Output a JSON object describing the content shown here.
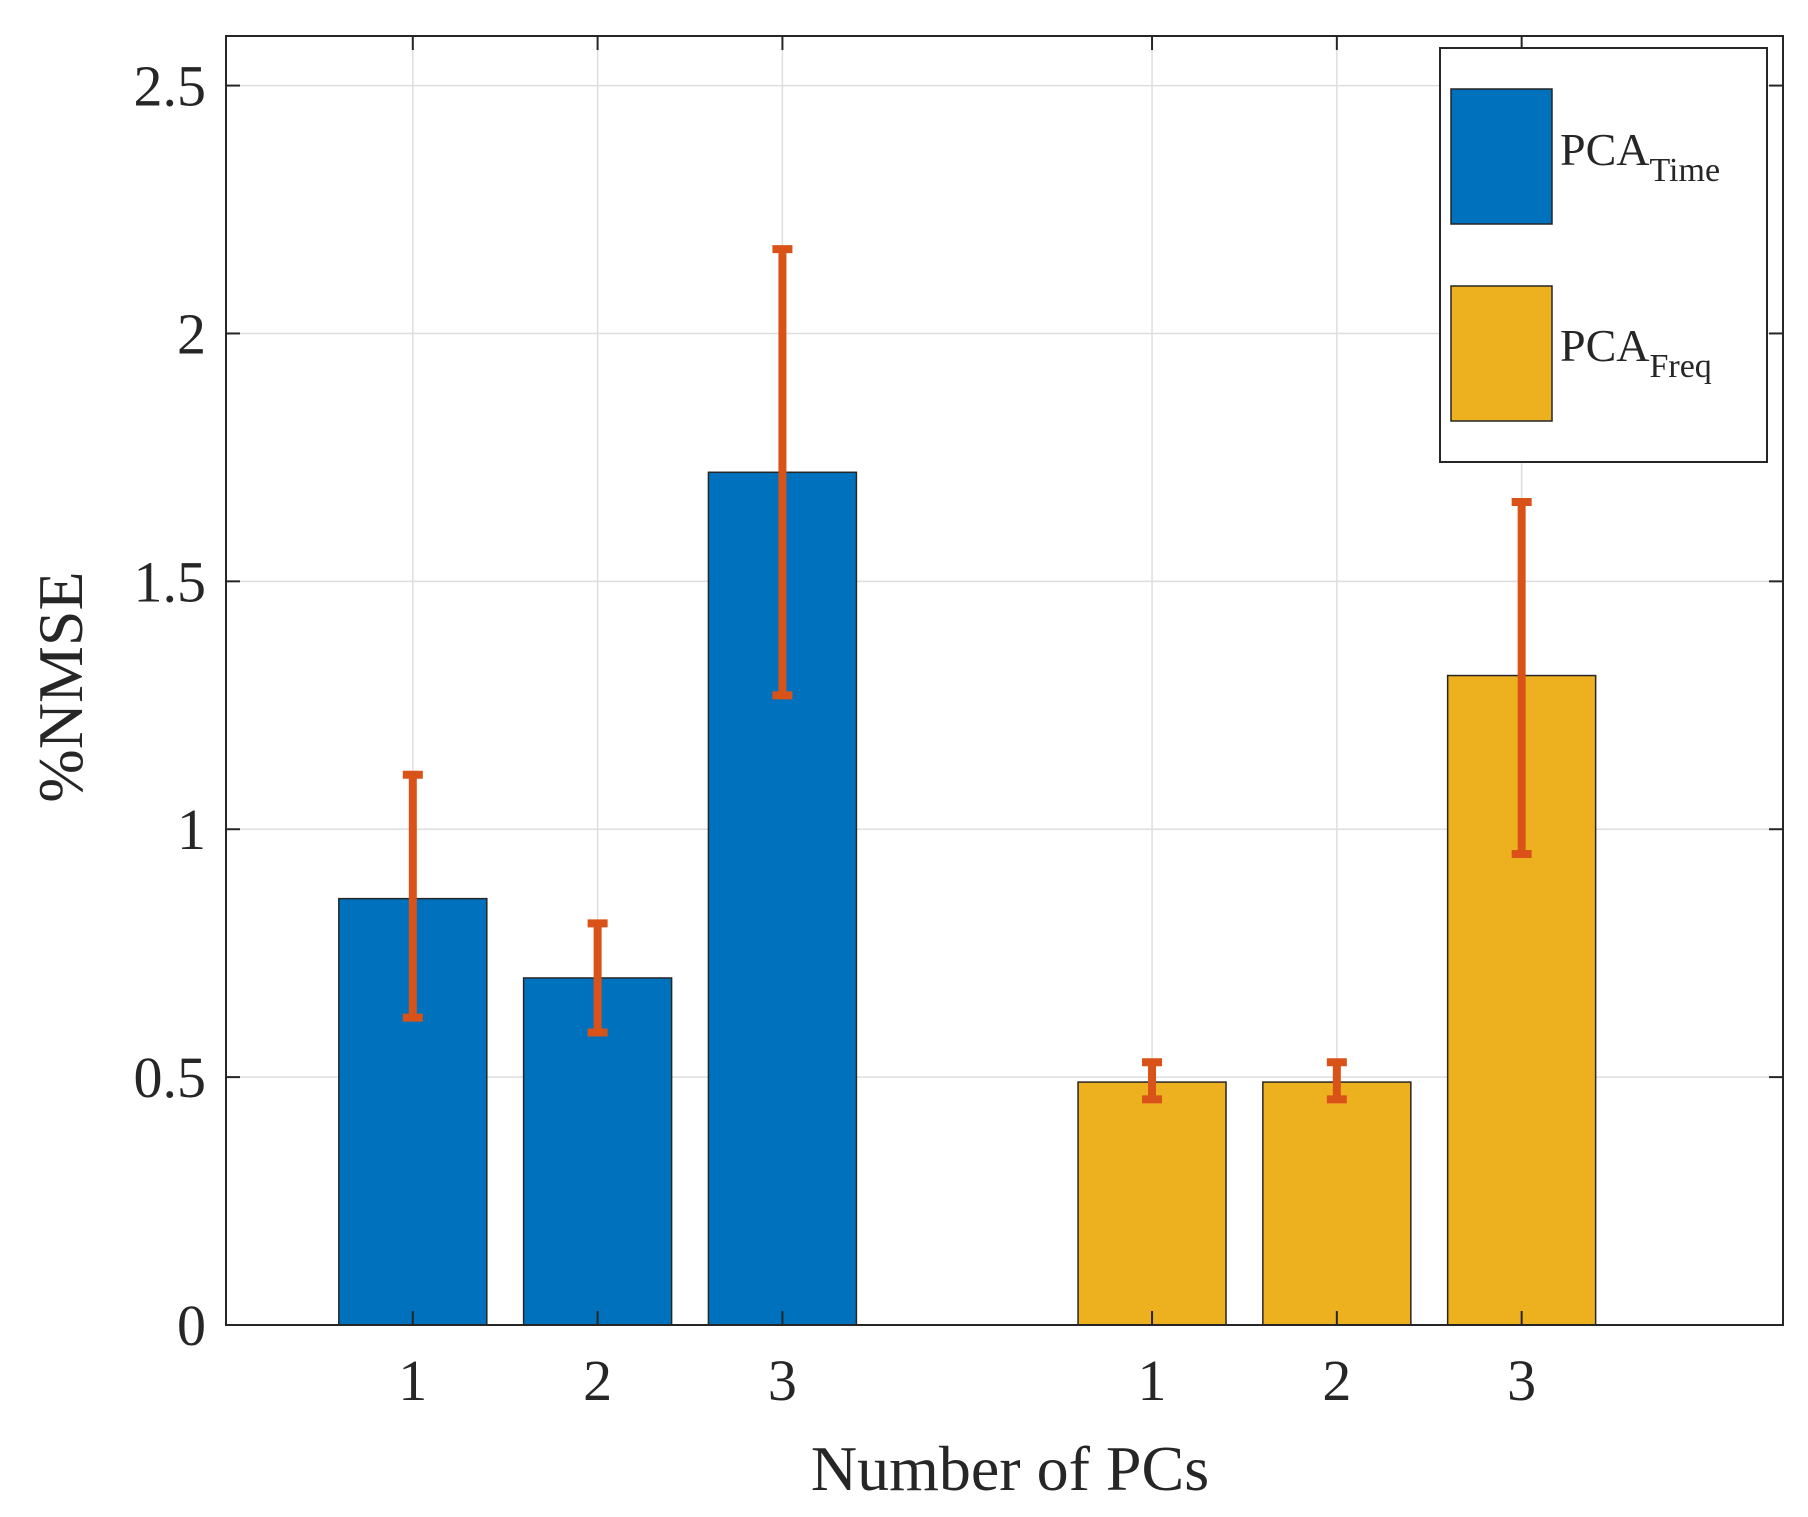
{
  "chart_data": {
    "type": "bar",
    "title": "",
    "xlabel": "Number of PCs",
    "ylabel": "%NMSE",
    "ylim": [
      0,
      2.6
    ],
    "yticks": [
      "0",
      "0.5",
      "1",
      "1.5",
      "2",
      "2.5"
    ],
    "ytick_values": [
      0,
      0.5,
      1,
      1.5,
      2,
      2.5
    ],
    "grid": true,
    "legend_location": "top-right",
    "error_bar_color": "#D95319",
    "groups": [
      {
        "name": "PCA_Time",
        "legend_main": "PCA",
        "legend_sub": "Time",
        "color": "#0072BD",
        "categories": [
          "1",
          "2",
          "3"
        ],
        "values": [
          0.86,
          0.7,
          1.72
        ],
        "error_low": [
          0.62,
          0.59,
          1.27
        ],
        "error_high": [
          1.11,
          0.81,
          2.17
        ]
      },
      {
        "name": "PCA_Freq",
        "legend_main": "PCA",
        "legend_sub": "Freq",
        "color": "#EDB120",
        "categories": [
          "1",
          "2",
          "3"
        ],
        "values": [
          0.49,
          0.49,
          1.31
        ],
        "error_low": [
          0.455,
          0.455,
          0.95
        ],
        "error_high": [
          0.53,
          0.53,
          1.66
        ]
      }
    ]
  }
}
